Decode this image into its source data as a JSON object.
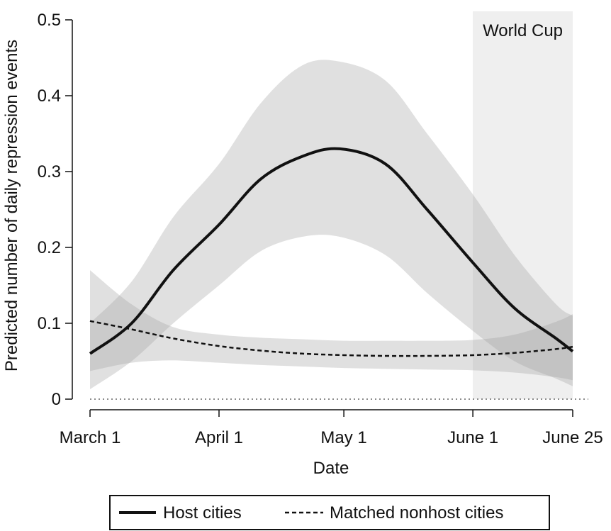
{
  "chart_data": {
    "type": "line",
    "title": "",
    "xlabel": "Date",
    "ylabel": "Predicted number of daily repression events",
    "ylim": [
      0,
      0.5
    ],
    "yticks": [
      0,
      0.1,
      0.2,
      0.3,
      0.4,
      0.5
    ],
    "ytick_labels": [
      "0",
      "0.1",
      "0.2",
      "0.3",
      "0.4",
      "0.5"
    ],
    "xlim": [
      "March 1",
      "June 25"
    ],
    "xticks": [
      {
        "date": "March 1",
        "label": "March 1"
      },
      {
        "date": "April 1",
        "label": "April 1"
      },
      {
        "date": "May 1",
        "label": "May 1"
      },
      {
        "date": "June 1",
        "label": "June 1"
      },
      {
        "date": "June 25",
        "label": "June 25"
      }
    ],
    "reference_line": {
      "y": 0,
      "style": "dotted"
    },
    "shaded_period": {
      "label": "World Cup",
      "start": "June 1",
      "end": "June 25"
    },
    "series": [
      {
        "name": "Host cities",
        "style": "solid",
        "x": [
          "March 1",
          "March 11",
          "March 21",
          "April 1",
          "April 11",
          "April 21",
          "April 30",
          "May 11",
          "May 21",
          "June 1",
          "June 11",
          "June 21",
          "June 25"
        ],
        "values": [
          0.06,
          0.1,
          0.17,
          0.23,
          0.29,
          0.32,
          0.33,
          0.31,
          0.25,
          0.18,
          0.12,
          0.08,
          0.063
        ],
        "ci_lower": [
          0.013,
          0.05,
          0.1,
          0.15,
          0.195,
          0.214,
          0.214,
          0.19,
          0.14,
          0.09,
          0.05,
          0.027,
          0.017
        ],
        "ci_upper": [
          0.1,
          0.155,
          0.24,
          0.31,
          0.39,
          0.44,
          0.445,
          0.42,
          0.35,
          0.27,
          0.19,
          0.125,
          0.11
        ]
      },
      {
        "name": "Matched nonhost cities",
        "style": "dashed",
        "x": [
          "March 1",
          "March 11",
          "March 21",
          "April 1",
          "April 11",
          "April 21",
          "May 1",
          "May 11",
          "May 21",
          "June 1",
          "June 11",
          "June 21",
          "June 25"
        ],
        "values": [
          0.103,
          0.092,
          0.08,
          0.07,
          0.064,
          0.06,
          0.058,
          0.057,
          0.057,
          0.058,
          0.061,
          0.066,
          0.069
        ],
        "ci_lower": [
          0.037,
          0.048,
          0.051,
          0.048,
          0.045,
          0.043,
          0.041,
          0.04,
          0.039,
          0.038,
          0.035,
          0.029,
          0.025
        ],
        "ci_upper": [
          0.17,
          0.125,
          0.095,
          0.085,
          0.081,
          0.079,
          0.077,
          0.077,
          0.077,
          0.078,
          0.085,
          0.102,
          0.112
        ]
      }
    ],
    "legend": {
      "position": "bottom",
      "entries": [
        "Host cities",
        "Matched nonhost cities"
      ]
    }
  }
}
